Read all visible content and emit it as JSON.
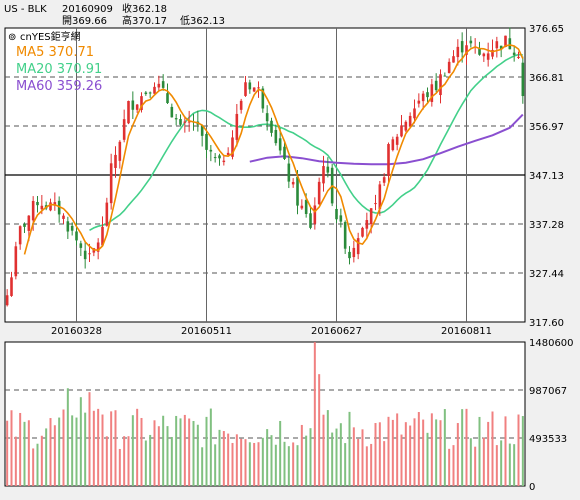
{
  "header": {
    "symbol": "US - BLK",
    "date": "20160909",
    "close": "收362.18",
    "open": "開369.66",
    "high": "高370.17",
    "low": "低362.13",
    "watermark": "cnYES鉅亨網"
  },
  "legend": [
    {
      "name": "MA5",
      "value": "370.71",
      "color": "#f08a00"
    },
    {
      "name": "MA20",
      "value": "370.91",
      "color": "#43d08a"
    },
    {
      "name": "MA60",
      "value": "359.26",
      "color": "#8a4fd0"
    }
  ],
  "colors": {
    "up": "#e03030",
    "down": "#2a8a3a",
    "volume_up": "#f08080",
    "volume_down": "#80c080"
  },
  "chart_data": [
    {
      "type": "candlestick",
      "y_ticks": [
        "376.65",
        "366.81",
        "356.97",
        "347.13",
        "337.28",
        "327.44",
        "317.60"
      ],
      "ylim": [
        317.6,
        376.65
      ],
      "x_ticks": [
        {
          "label": "20160328",
          "index": 16
        },
        {
          "label": "20160511",
          "index": 46
        },
        {
          "label": "20160627",
          "index": 76
        },
        {
          "label": "20160811",
          "index": 106
        }
      ],
      "n_bars": 120,
      "ma60": [
        {
          "i": 56,
          "v": 349.8
        },
        {
          "i": 60,
          "v": 350.6
        },
        {
          "i": 64,
          "v": 350.9
        },
        {
          "i": 68,
          "v": 350.5
        },
        {
          "i": 72,
          "v": 349.9
        },
        {
          "i": 76,
          "v": 349.6
        },
        {
          "i": 80,
          "v": 349.4
        },
        {
          "i": 84,
          "v": 349.3
        },
        {
          "i": 88,
          "v": 349.3
        },
        {
          "i": 92,
          "v": 349.6
        },
        {
          "i": 96,
          "v": 350.3
        },
        {
          "i": 100,
          "v": 351.5
        },
        {
          "i": 104,
          "v": 352.8
        },
        {
          "i": 108,
          "v": 354.0
        },
        {
          "i": 112,
          "v": 355.1
        },
        {
          "i": 116,
          "v": 356.6
        },
        {
          "i": 119,
          "v": 359.26
        }
      ]
    },
    {
      "type": "bar",
      "y_ticks": [
        "1480600",
        "987067",
        "493533",
        "0"
      ],
      "ylim": [
        0,
        1480600
      ]
    }
  ]
}
